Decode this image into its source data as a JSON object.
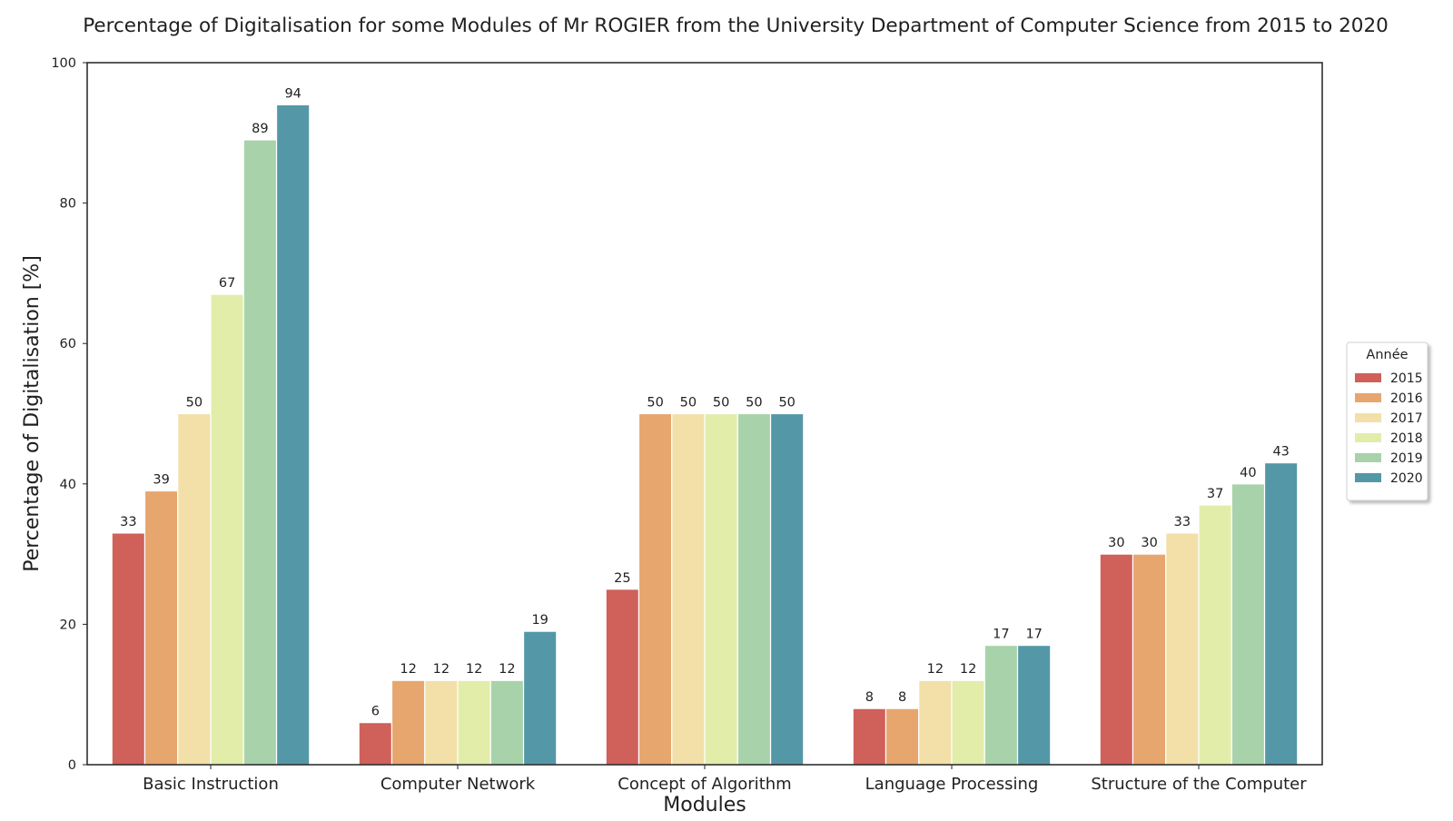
{
  "chart_data": {
    "type": "bar",
    "title": "Percentage of Digitalisation for some Modules of Mr ROGIER from the University Department of Computer Science from 2015 to 2020",
    "xlabel": "Modules",
    "ylabel": "Percentage of Digitalisation [%]",
    "ylim": [
      0,
      100
    ],
    "yticks": [
      0,
      20,
      40,
      60,
      80,
      100
    ],
    "grid": false,
    "categories": [
      "Basic Instruction",
      "Computer Network",
      "Concept of Algorithm",
      "Language Processing",
      "Structure of the Computer"
    ],
    "legend": {
      "title": "Année",
      "position": "right"
    },
    "series": [
      {
        "name": "2015",
        "color": "#d0605a",
        "values": [
          33,
          6,
          25,
          8,
          30
        ]
      },
      {
        "name": "2016",
        "color": "#e7a66e",
        "values": [
          39,
          12,
          50,
          8,
          30
        ]
      },
      {
        "name": "2017",
        "color": "#f2e0a8",
        "values": [
          50,
          12,
          50,
          12,
          33
        ]
      },
      {
        "name": "2018",
        "color": "#e2edaa",
        "values": [
          67,
          12,
          50,
          12,
          37
        ]
      },
      {
        "name": "2019",
        "color": "#a8d3aa",
        "values": [
          89,
          12,
          50,
          17,
          40
        ]
      },
      {
        "name": "2020",
        "color": "#5498a8",
        "values": [
          94,
          19,
          50,
          17,
          43
        ]
      }
    ]
  }
}
